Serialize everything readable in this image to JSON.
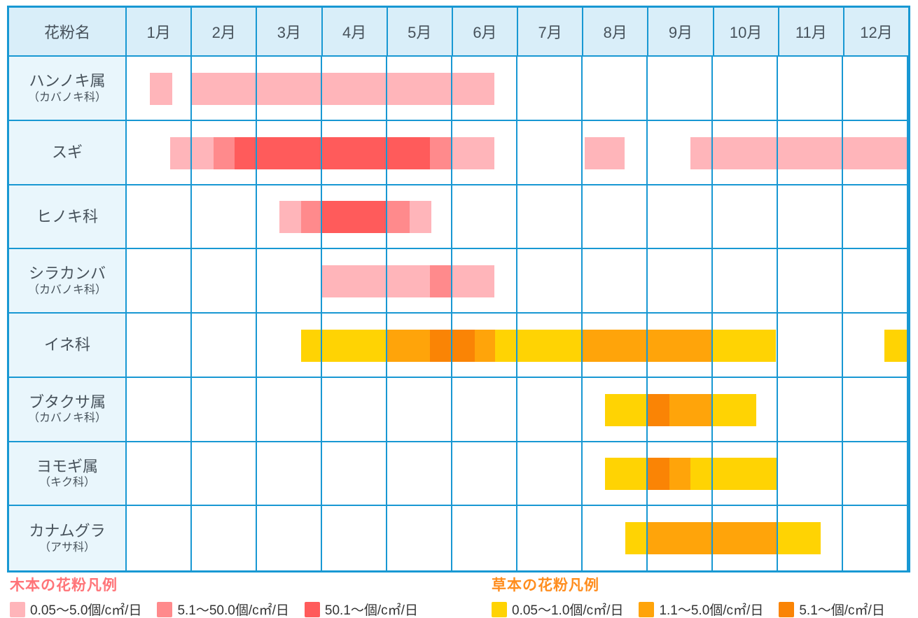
{
  "header": {
    "corner": "花粉名",
    "months": [
      "1月",
      "2月",
      "3月",
      "4月",
      "5月",
      "6月",
      "7月",
      "8月",
      "9月",
      "10月",
      "11月",
      "12月"
    ]
  },
  "legends": {
    "tree": {
      "title": "木本の花粉凡例",
      "title_color": "#FF7478"
    },
    "grass": {
      "title": "草本の花粉凡例",
      "title_color": "#FF8D1E"
    }
  },
  "colors": {
    "grid": "#1898D3",
    "header_bg": "#D9EEF9",
    "label_bg": "#E9F6FC",
    "text": "#47525B"
  },
  "chart_data": {
    "type": "heatmap",
    "x_categories": [
      "1月",
      "2月",
      "3月",
      "4月",
      "5月",
      "6月",
      "7月",
      "8月",
      "9月",
      "10月",
      "11月",
      "12月"
    ],
    "unit": "個/c㎡/日",
    "legend_position": "bottom",
    "levels": {
      "tree": [
        {
          "label": "0.05〜5.0個/c㎡/日",
          "color": "#FFB5BA"
        },
        {
          "label": "5.1〜50.0個/c㎡/日",
          "color": "#FF8A8C"
        },
        {
          "label": "50.1〜個/c㎡/日",
          "color": "#FF5B5B"
        }
      ],
      "grass": [
        {
          "label": "0.05〜1.0個/c㎡/日",
          "color": "#FFD303"
        },
        {
          "label": "1.1〜5.0個/c㎡/日",
          "color": "#FFA40A"
        },
        {
          "label": "5.1〜個/c㎡/日",
          "color": "#FA8405"
        }
      ]
    },
    "rows": [
      {
        "name": "ハンノキ属",
        "sub": "（カバノキ科）",
        "category": "tree",
        "segments": [
          {
            "start": 0.36,
            "end": 0.7,
            "level": 1
          },
          {
            "start": 1.0,
            "end": 5.65,
            "level": 1
          }
        ]
      },
      {
        "name": "スギ",
        "sub": "",
        "category": "tree",
        "segments": [
          {
            "start": 0.67,
            "end": 1.33,
            "level": 1
          },
          {
            "start": 1.33,
            "end": 1.66,
            "level": 2
          },
          {
            "start": 1.66,
            "end": 4.66,
            "level": 3
          },
          {
            "start": 4.66,
            "end": 5.0,
            "level": 2
          },
          {
            "start": 5.0,
            "end": 5.65,
            "level": 1
          },
          {
            "start": 7.03,
            "end": 7.65,
            "level": 1
          },
          {
            "start": 8.66,
            "end": 12.0,
            "level": 1
          }
        ]
      },
      {
        "name": "ヒノキ科",
        "sub": "",
        "category": "tree",
        "segments": [
          {
            "start": 2.34,
            "end": 2.68,
            "level": 1
          },
          {
            "start": 2.68,
            "end": 3.0,
            "level": 2
          },
          {
            "start": 3.0,
            "end": 4.0,
            "level": 3
          },
          {
            "start": 4.0,
            "end": 4.34,
            "level": 2
          },
          {
            "start": 4.34,
            "end": 4.68,
            "level": 1
          }
        ]
      },
      {
        "name": "シラカンバ",
        "sub": "（カバノキ科）",
        "category": "tree",
        "segments": [
          {
            "start": 3.0,
            "end": 4.66,
            "level": 1
          },
          {
            "start": 4.66,
            "end": 5.0,
            "level": 2
          },
          {
            "start": 5.0,
            "end": 5.65,
            "level": 1
          }
        ]
      },
      {
        "name": "イネ科",
        "sub": "",
        "category": "grass",
        "segments": [
          {
            "start": 2.68,
            "end": 4.0,
            "level": 1
          },
          {
            "start": 4.0,
            "end": 4.66,
            "level": 2
          },
          {
            "start": 4.66,
            "end": 5.34,
            "level": 3
          },
          {
            "start": 5.34,
            "end": 5.66,
            "level": 2
          },
          {
            "start": 5.66,
            "end": 7.0,
            "level": 1
          },
          {
            "start": 7.0,
            "end": 9.0,
            "level": 2
          },
          {
            "start": 9.0,
            "end": 9.97,
            "level": 1
          },
          {
            "start": 11.63,
            "end": 12.0,
            "level": 1
          }
        ]
      },
      {
        "name": "ブタクサ属",
        "sub": "（カバノキ科）",
        "category": "grass",
        "segments": [
          {
            "start": 7.34,
            "end": 8.0,
            "level": 1
          },
          {
            "start": 8.0,
            "end": 8.33,
            "level": 3
          },
          {
            "start": 8.33,
            "end": 9.0,
            "level": 2
          },
          {
            "start": 9.0,
            "end": 9.67,
            "level": 1
          }
        ]
      },
      {
        "name": "ヨモギ属",
        "sub": "（キク科）",
        "category": "grass",
        "segments": [
          {
            "start": 7.34,
            "end": 8.0,
            "level": 1
          },
          {
            "start": 8.0,
            "end": 8.33,
            "level": 3
          },
          {
            "start": 8.33,
            "end": 8.66,
            "level": 2
          },
          {
            "start": 8.66,
            "end": 10.0,
            "level": 1
          }
        ]
      },
      {
        "name": "カナムグラ",
        "sub": "（アサ科）",
        "category": "grass",
        "segments": [
          {
            "start": 7.66,
            "end": 8.0,
            "level": 1
          },
          {
            "start": 8.0,
            "end": 10.0,
            "level": 2
          },
          {
            "start": 10.0,
            "end": 10.66,
            "level": 1
          }
        ]
      }
    ]
  }
}
